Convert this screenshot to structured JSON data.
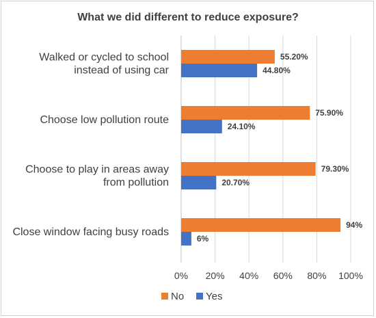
{
  "chart_data": {
    "type": "bar",
    "orientation": "horizontal",
    "title": "What we did different to reduce exposure?",
    "categories": [
      [
        "Walked or cycled to school",
        "instead of using car"
      ],
      [
        "Choose low pollution route"
      ],
      [
        "Choose to play in areas away",
        "from pollution"
      ],
      [
        "Close window facing busy roads"
      ]
    ],
    "series": [
      {
        "name": "No",
        "color": "#ED7D31",
        "values": [
          55.2,
          75.9,
          79.3,
          94
        ],
        "labels": [
          "55.20%",
          "75.90%",
          "79.30%",
          "94%"
        ]
      },
      {
        "name": "Yes",
        "color": "#4472C4",
        "values": [
          44.8,
          24.1,
          20.7,
          6
        ],
        "labels": [
          "44.80%",
          "24.10%",
          "20.70%",
          "6%"
        ]
      }
    ],
    "xlim": [
      0,
      100
    ],
    "xticks": [
      "0%",
      "20%",
      "40%",
      "60%",
      "80%",
      "100%"
    ],
    "grid": true,
    "legend_position": "bottom"
  }
}
